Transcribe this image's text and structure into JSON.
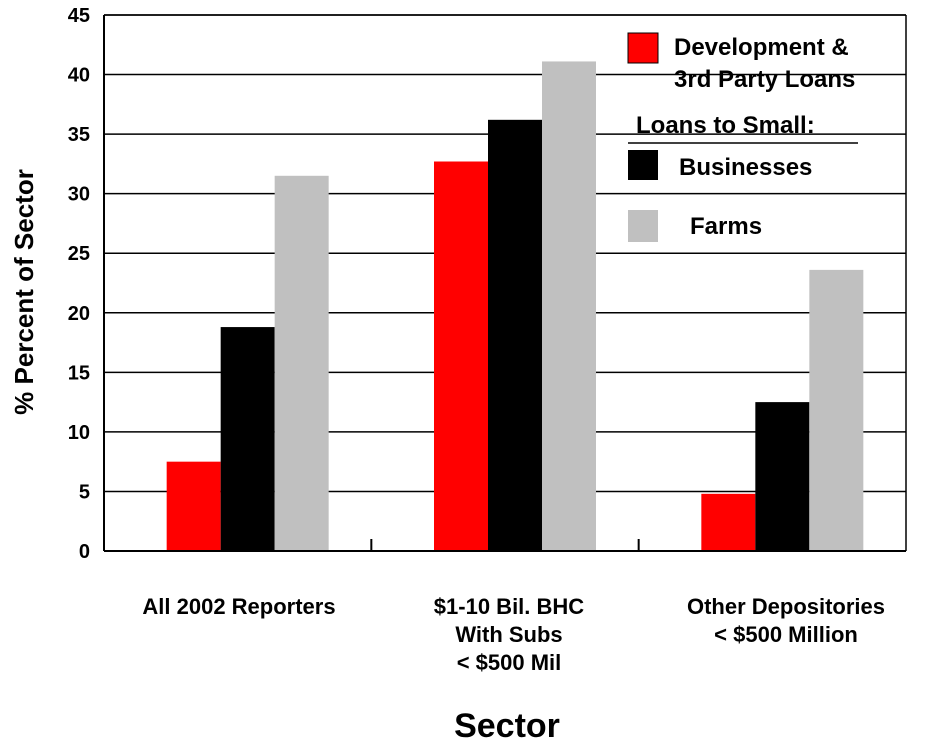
{
  "chart_data": {
    "type": "bar",
    "xlabel": "Sector",
    "ylabel": "% Percent of Sector",
    "ylim": [
      0,
      45
    ],
    "yticks": [
      0,
      5,
      10,
      15,
      20,
      25,
      30,
      35,
      40,
      45
    ],
    "grid": true,
    "legend_position": "top-right",
    "categories": [
      [
        "All 2002 Reporters"
      ],
      [
        "$1-10 Bil. BHC",
        "With Subs",
        "< $500 Mil"
      ],
      [
        "Other Depositories",
        "< $500 Million"
      ]
    ],
    "series": [
      {
        "name": "Development & 3rd Party Loans",
        "legend_lines": [
          "Development &",
          "3rd Party Loans"
        ],
        "color": "#ff0000",
        "values": [
          7.5,
          32.7,
          4.8
        ]
      },
      {
        "name": "Businesses",
        "legend_lines": [
          "Businesses"
        ],
        "color": "#000000",
        "values": [
          18.8,
          36.2,
          12.5
        ]
      },
      {
        "name": "Farms",
        "legend_lines": [
          "Farms"
        ],
        "color": "#c0c0c0",
        "values": [
          31.5,
          41.1,
          23.6
        ]
      }
    ],
    "legend_subheading": "Loans to Small:"
  }
}
